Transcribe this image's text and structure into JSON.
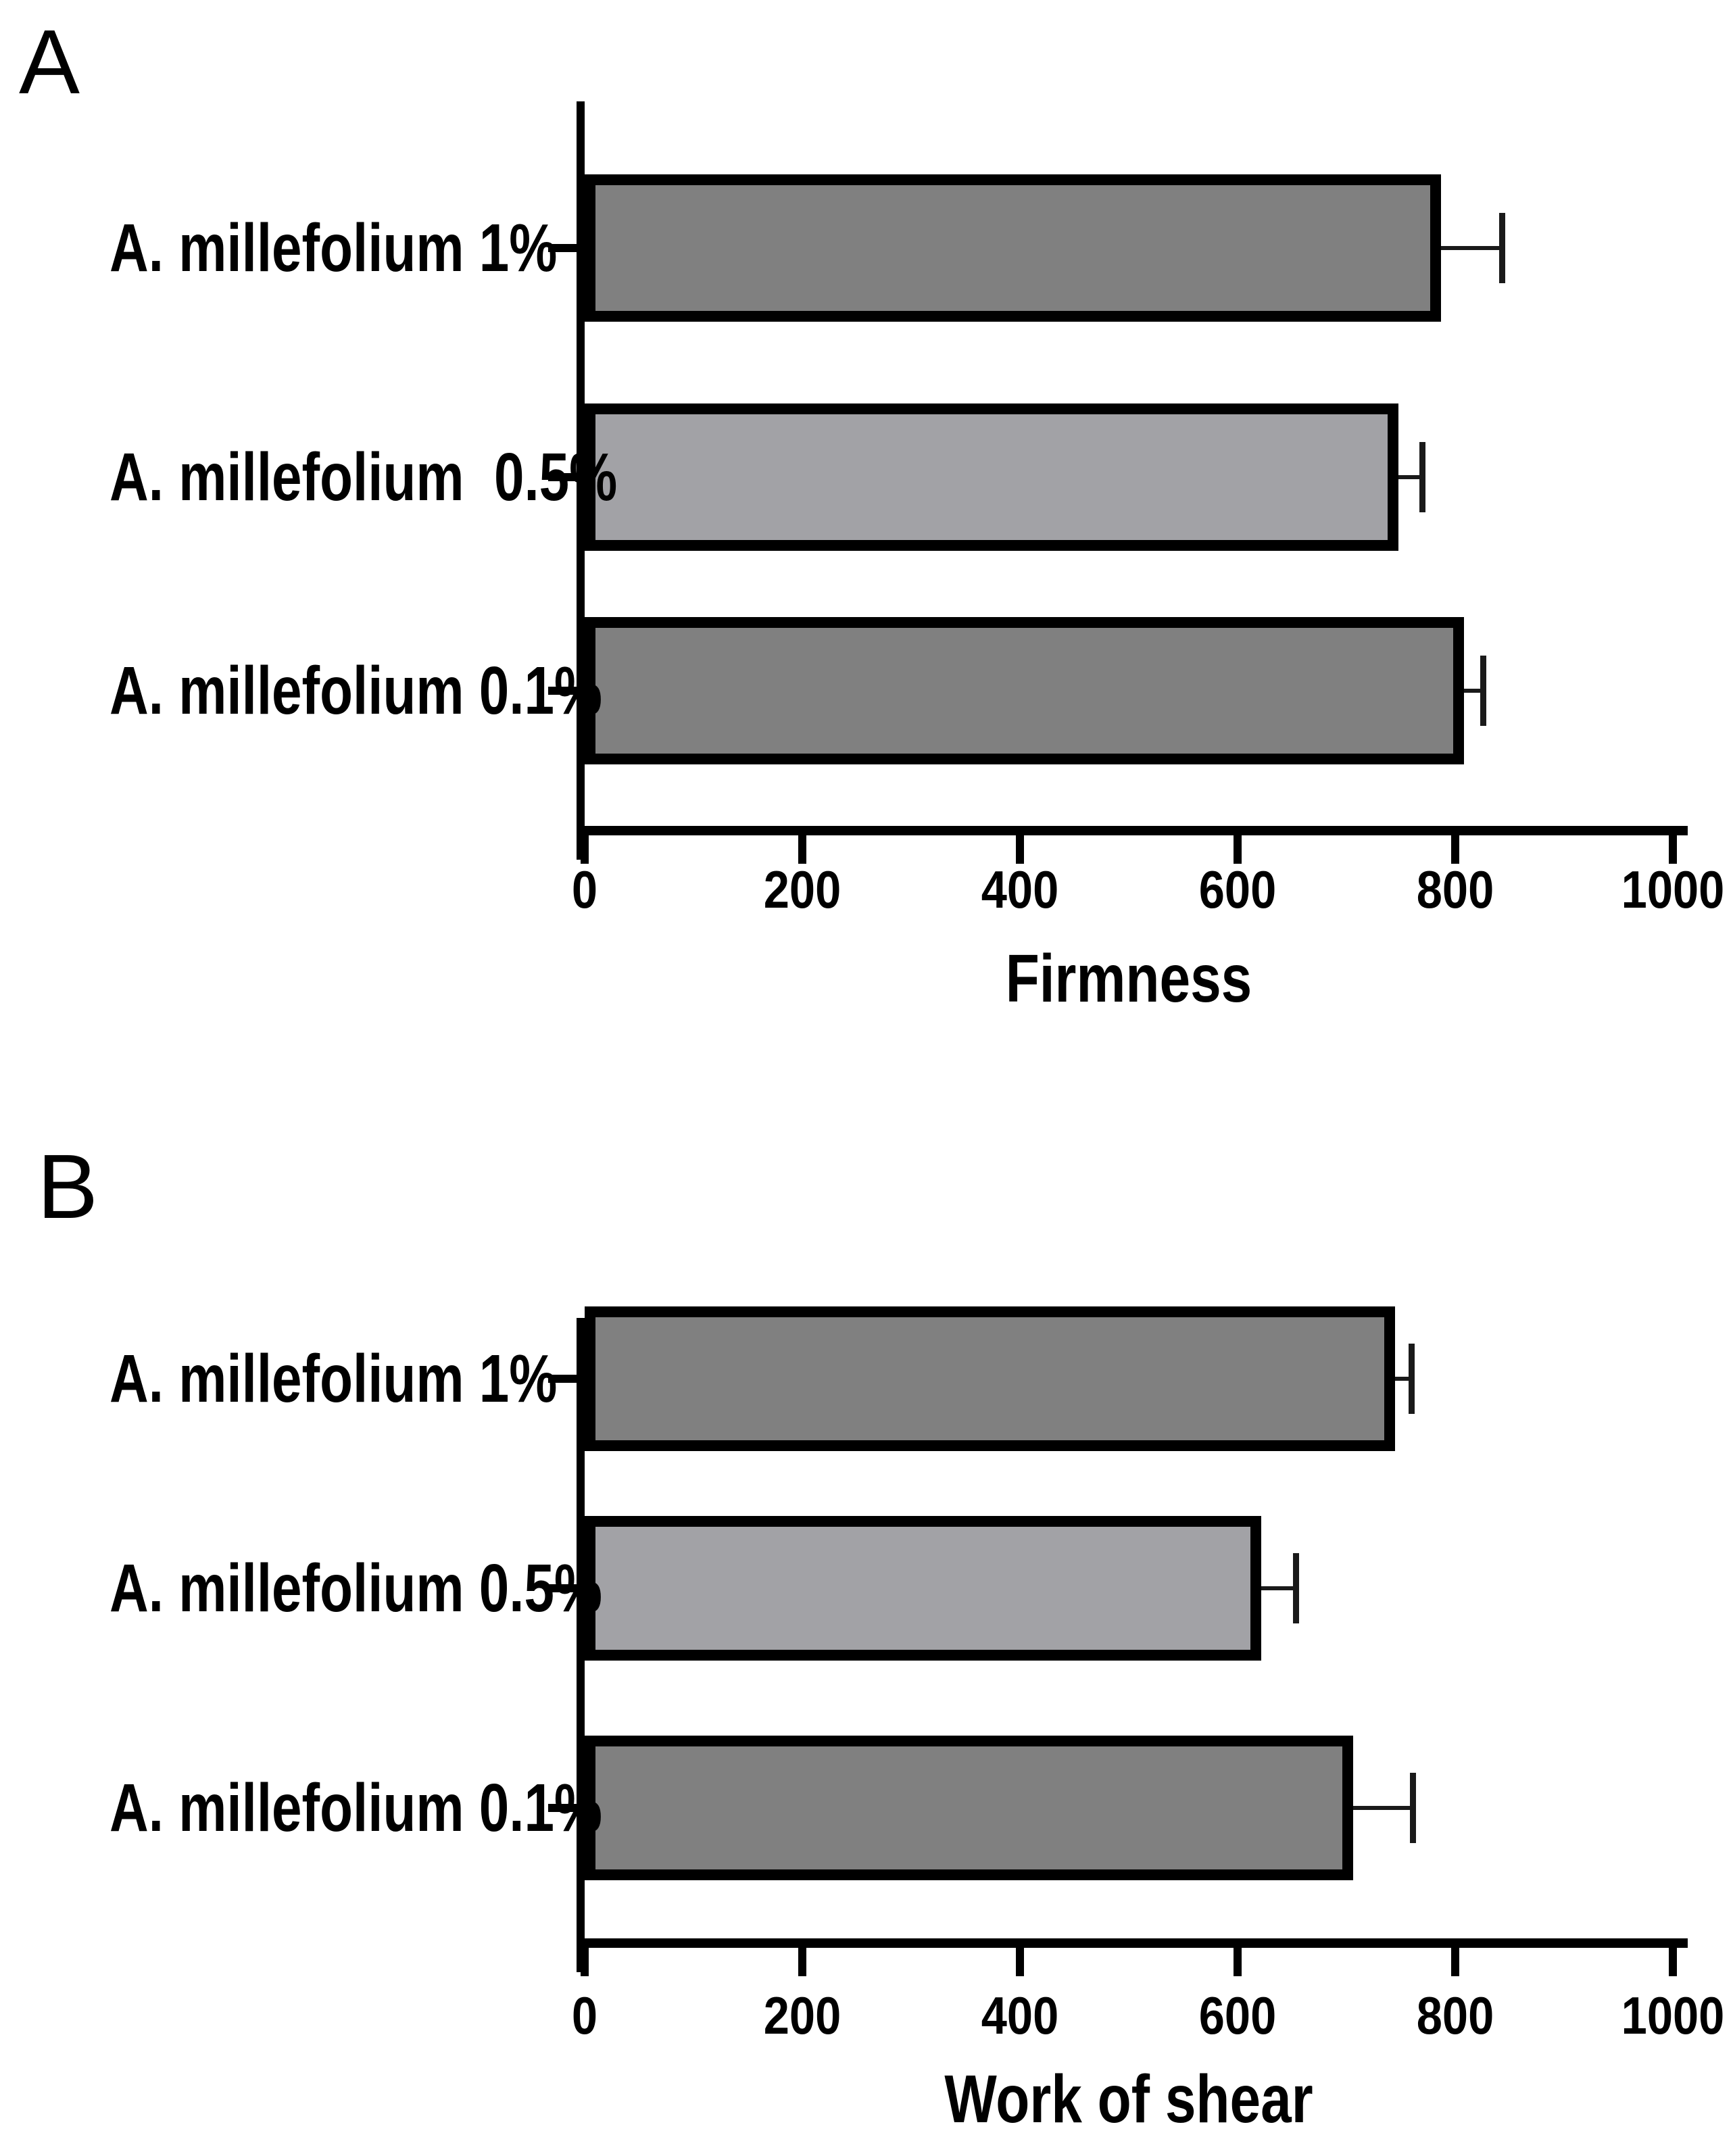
{
  "figure": {
    "panels": [
      {
        "letter": "A",
        "axis_title": "Firmness"
      },
      {
        "letter": "B",
        "axis_title": "Work of shear"
      }
    ]
  },
  "colors": {
    "bar_dark": "#808080",
    "bar_light": "#A2A2A6",
    "axis": "#000000",
    "background": "#FFFFFF"
  },
  "chart_data": [
    {
      "type": "bar",
      "orientation": "horizontal",
      "panel": "A",
      "categories": [
        "A. millefolium 1%",
        "A. millefolium  0.5%",
        "A. millefolium 0.1%"
      ],
      "values": [
        787,
        748,
        808
      ],
      "errors_plus": [
        56,
        22,
        18
      ],
      "bar_shades": [
        "dark",
        "light",
        "dark"
      ],
      "xlabel": "Firmness",
      "xlim": [
        0,
        1000
      ],
      "xticks": [
        0,
        200,
        400,
        600,
        800,
        1000
      ],
      "grid": false,
      "legend": "none"
    },
    {
      "type": "bar",
      "orientation": "horizontal",
      "panel": "B",
      "categories": [
        "A. millefolium 1%",
        "A. millefolium 0.5%",
        "A. millefolium 0.1%"
      ],
      "values": [
        745,
        622,
        706
      ],
      "errors_plus": [
        15,
        32,
        55
      ],
      "bar_shades": [
        "dark",
        "light",
        "dark"
      ],
      "xlabel": "Work of shear",
      "xlim": [
        0,
        1000
      ],
      "xticks": [
        0,
        200,
        400,
        600,
        800,
        1000
      ],
      "grid": false,
      "legend": "none"
    }
  ]
}
